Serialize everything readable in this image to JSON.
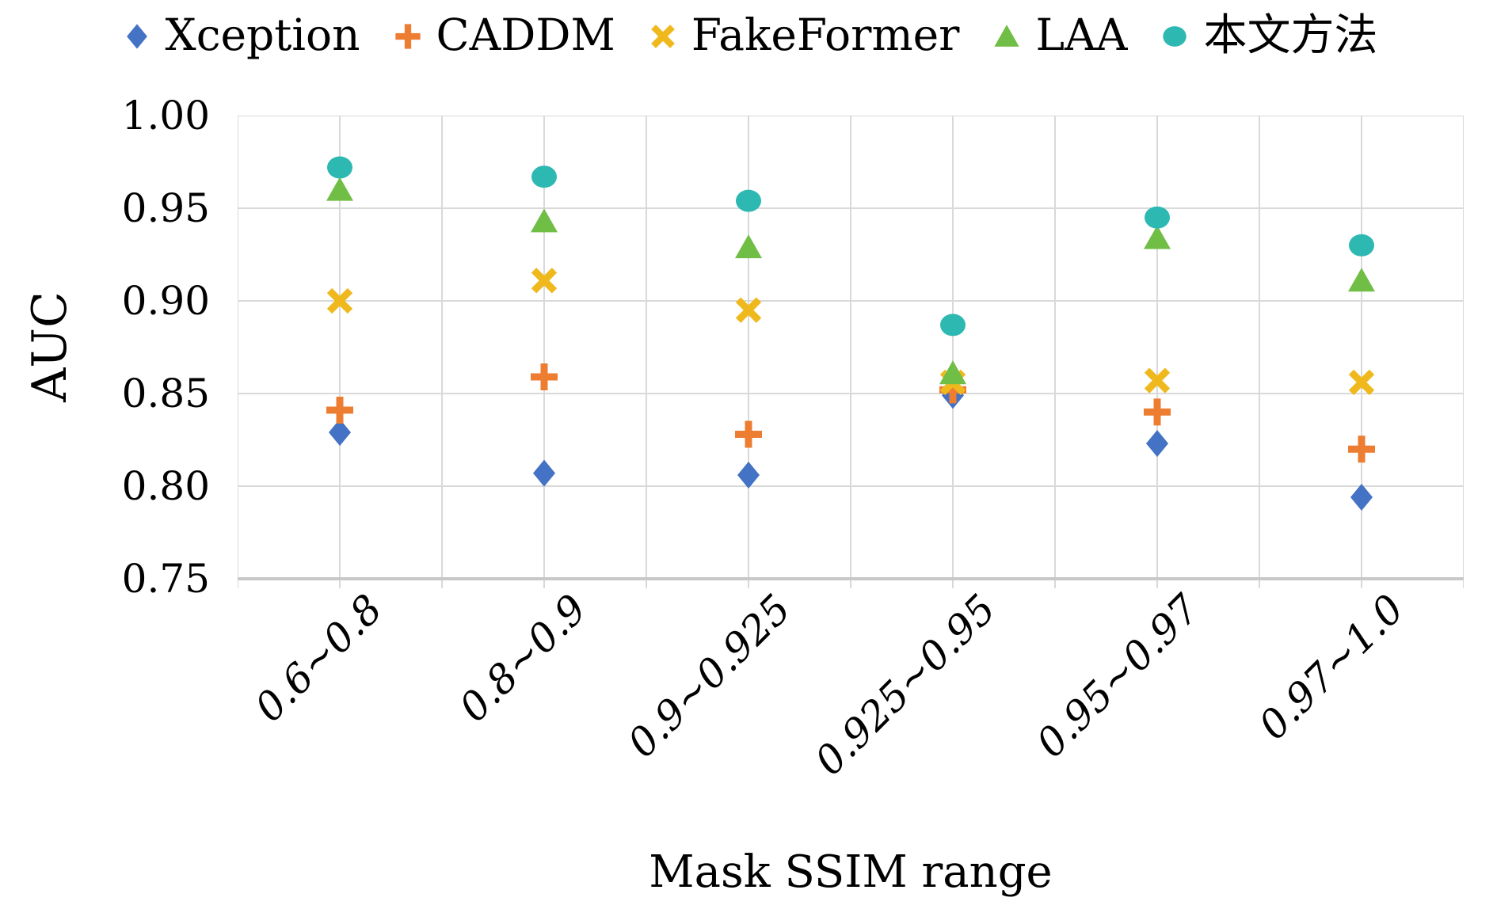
{
  "colors": {
    "background": "#FFFFFF",
    "grid": "#D9D9D9",
    "axis_line": "#C8C8C8",
    "text": "#000000"
  },
  "chart_data": {
    "type": "scatter",
    "title": "",
    "xlabel": "Mask SSIM range",
    "ylabel": "AUC",
    "categories": [
      "0.6~0.8",
      "0.8~0.9",
      "0.9~0.925",
      "0.925~0.95",
      "0.95~0.97",
      "0.97~1.0"
    ],
    "ylim": [
      0.75,
      1.0
    ],
    "yticks": [
      1.0,
      0.95,
      0.9,
      0.85,
      0.8,
      0.75
    ],
    "ytick_labels": [
      "1.00",
      "0.95",
      "0.90",
      "0.85",
      "0.80",
      "0.75"
    ],
    "grid": true,
    "legend_position": "top",
    "series": [
      {
        "name": "Xception",
        "marker": "diamond",
        "color": "#4472C4",
        "values": [
          0.829,
          0.807,
          0.806,
          0.849,
          0.823,
          0.794
        ]
      },
      {
        "name": "CADDM",
        "marker": "plus",
        "color": "#ED7D31",
        "values": [
          0.841,
          0.859,
          0.828,
          0.852,
          0.84,
          0.82
        ]
      },
      {
        "name": "FakeFormer",
        "marker": "x",
        "color": "#EFB91E",
        "values": [
          0.9,
          0.911,
          0.895,
          0.856,
          0.857,
          0.856
        ]
      },
      {
        "name": "LAA",
        "marker": "triangle",
        "color": "#70BE45",
        "values": [
          0.96,
          0.943,
          0.929,
          0.861,
          0.934,
          0.911
        ]
      },
      {
        "name": "本文方法",
        "marker": "circle",
        "color": "#2EB8B2",
        "values": [
          0.972,
          0.967,
          0.954,
          0.887,
          0.945,
          0.93
        ]
      }
    ]
  }
}
